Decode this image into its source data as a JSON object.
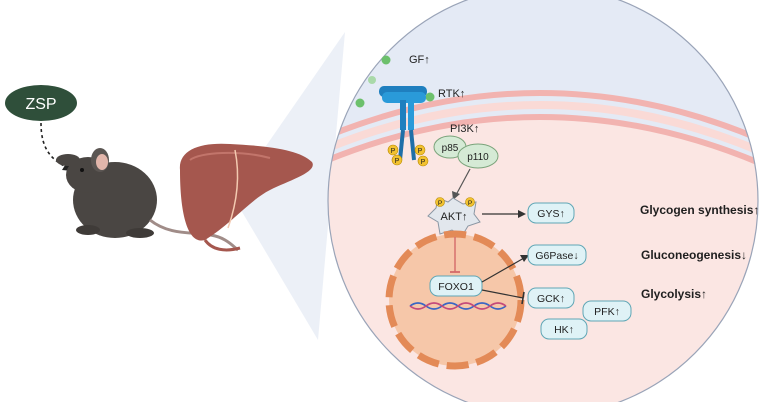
{
  "colors": {
    "zsp_fill": "#2f4f3a",
    "cell_bg": "#e4eaf5",
    "cytoplasm": "#fbe6e3",
    "membrane": "#f2b3b0",
    "nucleus": "#f6c7a9",
    "nucleus_border": "#e38a57",
    "receptor_blue": "#1f7fbf",
    "gf_green": "#6cc06c",
    "phospho_yellow": "#f2c230",
    "box_fill": "#dff2f6",
    "box_border": "#5fa6b5",
    "p_fill": "#d5ead5",
    "liver": "#a5574e",
    "mouse": "#4a4643"
  },
  "labels": {
    "zsp": "ZSP",
    "gf": "GF↑",
    "rtk": "RTK↑",
    "pi3k": "PI3K↑",
    "p85": "p85",
    "p110": "p110",
    "phospho": "P",
    "akt": "AKT↑",
    "foxo1": "FOXO1",
    "gys": "GYS↑",
    "g6pase": "G6Pase↓",
    "gck": "GCK↑",
    "pfk": "PFK↑",
    "hk": "HK↑"
  },
  "outcomes": {
    "glycogen": "Glycogen synthesis↑",
    "gluconeogenesis": "Gluconeogenesis↓",
    "glycolysis": "Glycolysis↑"
  },
  "icons": [
    "mouse-icon",
    "liver-icon",
    "dna-helix-icon",
    "receptor-icon",
    "growth-factor-icon"
  ]
}
